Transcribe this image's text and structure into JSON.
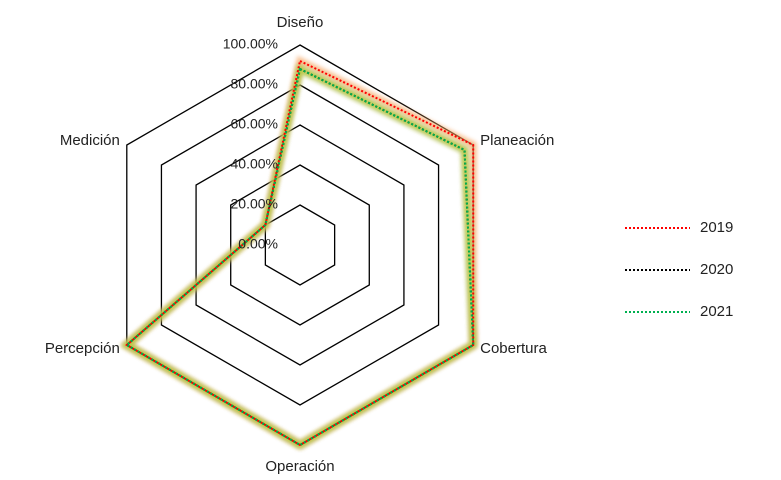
{
  "chart_data": {
    "type": "radar",
    "categories": [
      "Diseño",
      "Planeación",
      "Cobertura",
      "Operación",
      "Percepción",
      "Medición"
    ],
    "ylim": [
      0,
      100
    ],
    "yticks": [
      {
        "value": 0,
        "label": "0.00%"
      },
      {
        "value": 20,
        "label": "20.00%"
      },
      {
        "value": 40,
        "label": "40.00%"
      },
      {
        "value": 60,
        "label": "60.00%"
      },
      {
        "value": 80,
        "label": "80.00%"
      },
      {
        "value": 100,
        "label": "100.00%"
      }
    ],
    "legend": "right",
    "series": [
      {
        "name": "2019",
        "color": "#ff0000",
        "glow": "#f4a460",
        "values": [
          92,
          100,
          100,
          100,
          100,
          20
        ]
      },
      {
        "name": "2020",
        "color": "#000000",
        "glow": "#bbbbbb",
        "values": [
          88,
          95,
          100,
          100,
          100,
          20
        ]
      },
      {
        "name": "2021",
        "color": "#00b050",
        "glow": "#b5cc18",
        "values": [
          88,
          95,
          100,
          100,
          100,
          20
        ]
      }
    ]
  }
}
